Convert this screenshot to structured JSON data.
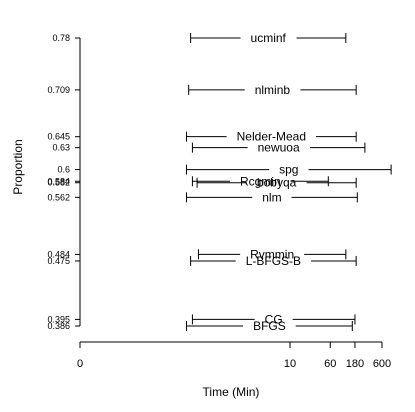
{
  "chart_data": {
    "type": "interval",
    "xlabel": "Time (Min)",
    "ylabel": "Proportion",
    "x_scale": "log",
    "x_ticks": [
      {
        "value": 0,
        "label": "0"
      },
      {
        "value": 10,
        "label": "10"
      },
      {
        "value": 60,
        "label": "60"
      },
      {
        "value": 180,
        "label": "180"
      },
      {
        "value": 600,
        "label": "600"
      }
    ],
    "series": [
      {
        "method": "ucminf",
        "proportion": 0.78,
        "proportion_label": "0.78",
        "min_time": 0.12,
        "max_time": 120
      },
      {
        "method": "nlminb",
        "proportion": 0.709,
        "proportion_label": "0.709",
        "min_time": 0.11,
        "max_time": 190
      },
      {
        "method": "Nelder-Mead",
        "proportion": 0.645,
        "proportion_label": "0.645",
        "min_time": 0.1,
        "max_time": 190
      },
      {
        "method": "newuoa",
        "proportion": 0.63,
        "proportion_label": "0.63",
        "min_time": 0.13,
        "max_time": 280
      },
      {
        "method": "spg",
        "proportion": 0.6,
        "proportion_label": "0.6",
        "min_time": 0.1,
        "max_time": 900
      },
      {
        "method": "Rcgmin",
        "proportion": 0.584,
        "proportion_label": "0.584",
        "min_time": 0.13,
        "max_time": 55
      },
      {
        "method": "bobyqa",
        "proportion": 0.582,
        "proportion_label": "0.582",
        "min_time": 0.16,
        "max_time": 190
      },
      {
        "method": "nlm",
        "proportion": 0.562,
        "proportion_label": "0.562",
        "min_time": 0.1,
        "max_time": 200
      },
      {
        "method": "Rvmmin",
        "proportion": 0.484,
        "proportion_label": "0.484",
        "min_time": 0.17,
        "max_time": 120
      },
      {
        "method": "L-BFGS-B",
        "proportion": 0.475,
        "proportion_label": "0.475",
        "min_time": 0.12,
        "max_time": 190
      },
      {
        "method": "CG",
        "proportion": 0.395,
        "proportion_label": "0.395",
        "min_time": 0.13,
        "max_time": 180
      },
      {
        "method": "BFGS",
        "proportion": 0.386,
        "proportion_label": "0.386",
        "min_time": 0.1,
        "max_time": 160
      }
    ]
  }
}
